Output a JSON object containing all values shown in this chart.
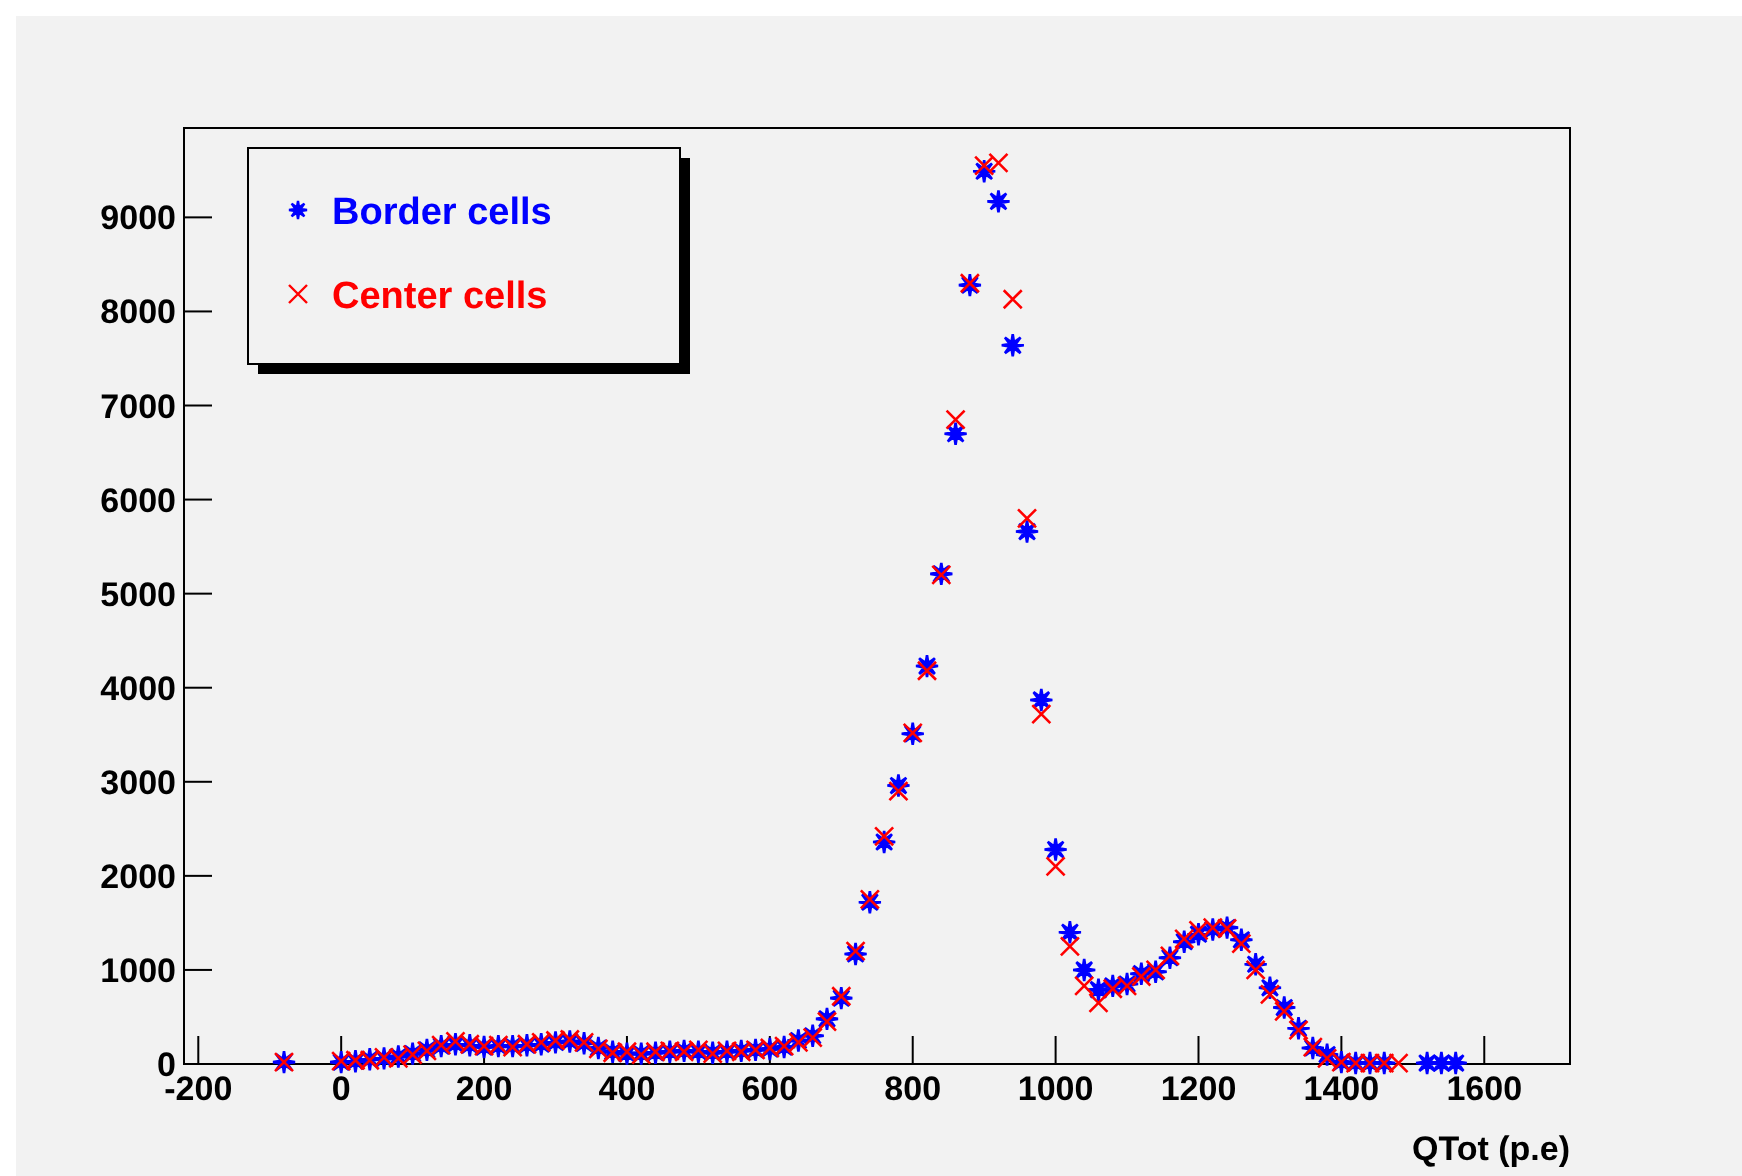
{
  "chart_data": {
    "type": "scatter",
    "xlabel": "QTot (p.e)",
    "xlim": [
      -220,
      1720
    ],
    "ylim": [
      0,
      9950
    ],
    "xticks": [
      -200,
      0,
      200,
      400,
      600,
      800,
      1000,
      1200,
      1400,
      1600
    ],
    "yticks": [
      0,
      1000,
      2000,
      3000,
      4000,
      5000,
      6000,
      7000,
      8000,
      9000
    ],
    "grid": false,
    "legend": "top left",
    "series": [
      {
        "name": "Border cells",
        "color": "#0000ff",
        "marker": "star",
        "x": [
          -80,
          0,
          20,
          40,
          60,
          80,
          100,
          120,
          140,
          160,
          180,
          200,
          220,
          240,
          260,
          280,
          300,
          320,
          340,
          360,
          380,
          400,
          420,
          440,
          460,
          480,
          500,
          520,
          540,
          560,
          580,
          600,
          620,
          640,
          660,
          680,
          700,
          720,
          740,
          760,
          780,
          800,
          820,
          840,
          860,
          880,
          900,
          920,
          940,
          960,
          980,
          1000,
          1020,
          1040,
          1060,
          1080,
          1100,
          1120,
          1140,
          1160,
          1180,
          1200,
          1220,
          1240,
          1260,
          1280,
          1300,
          1320,
          1340,
          1360,
          1380,
          1400,
          1420,
          1440,
          1460,
          1520,
          1540,
          1560
        ],
        "values": [
          20,
          20,
          30,
          50,
          60,
          80,
          110,
          150,
          190,
          210,
          200,
          180,
          190,
          190,
          200,
          210,
          230,
          240,
          220,
          170,
          130,
          110,
          110,
          120,
          130,
          140,
          130,
          120,
          130,
          140,
          150,
          160,
          180,
          250,
          300,
          480,
          700,
          1170,
          1720,
          2360,
          2960,
          3510,
          4230,
          5210,
          6700,
          8280,
          9490,
          9170,
          7640,
          5660,
          3870,
          2280,
          1400,
          1000,
          790,
          830,
          850,
          960,
          980,
          1130,
          1300,
          1380,
          1430,
          1450,
          1320,
          1060,
          810,
          600,
          380,
          170,
          100,
          20,
          10,
          10,
          10,
          10,
          10,
          10
        ]
      },
      {
        "name": "Center cells",
        "color": "#ff0000",
        "marker": "cross",
        "x": [
          -80,
          0,
          20,
          40,
          60,
          80,
          100,
          120,
          140,
          160,
          180,
          200,
          220,
          240,
          260,
          280,
          300,
          320,
          340,
          360,
          380,
          400,
          420,
          440,
          460,
          480,
          500,
          520,
          540,
          560,
          580,
          600,
          620,
          640,
          660,
          680,
          700,
          720,
          740,
          760,
          780,
          800,
          820,
          840,
          860,
          880,
          900,
          920,
          940,
          960,
          980,
          1000,
          1020,
          1040,
          1060,
          1080,
          1100,
          1120,
          1140,
          1160,
          1180,
          1200,
          1220,
          1240,
          1260,
          1280,
          1300,
          1320,
          1340,
          1360,
          1380,
          1400,
          1420,
          1440,
          1460,
          1480
        ],
        "values": [
          20,
          30,
          40,
          40,
          70,
          60,
          100,
          140,
          200,
          240,
          210,
          190,
          200,
          180,
          210,
          230,
          250,
          260,
          230,
          160,
          120,
          130,
          100,
          130,
          140,
          130,
          150,
          110,
          140,
          130,
          150,
          170,
          190,
          230,
          280,
          450,
          720,
          1200,
          1750,
          2420,
          2900,
          3520,
          4180,
          5200,
          6850,
          8300,
          9550,
          9580,
          8130,
          5800,
          3720,
          2100,
          1250,
          830,
          650,
          800,
          830,
          930,
          1000,
          1150,
          1330,
          1420,
          1450,
          1440,
          1280,
          1000,
          740,
          560,
          360,
          180,
          60,
          20,
          10,
          10,
          10,
          10
        ]
      }
    ]
  }
}
